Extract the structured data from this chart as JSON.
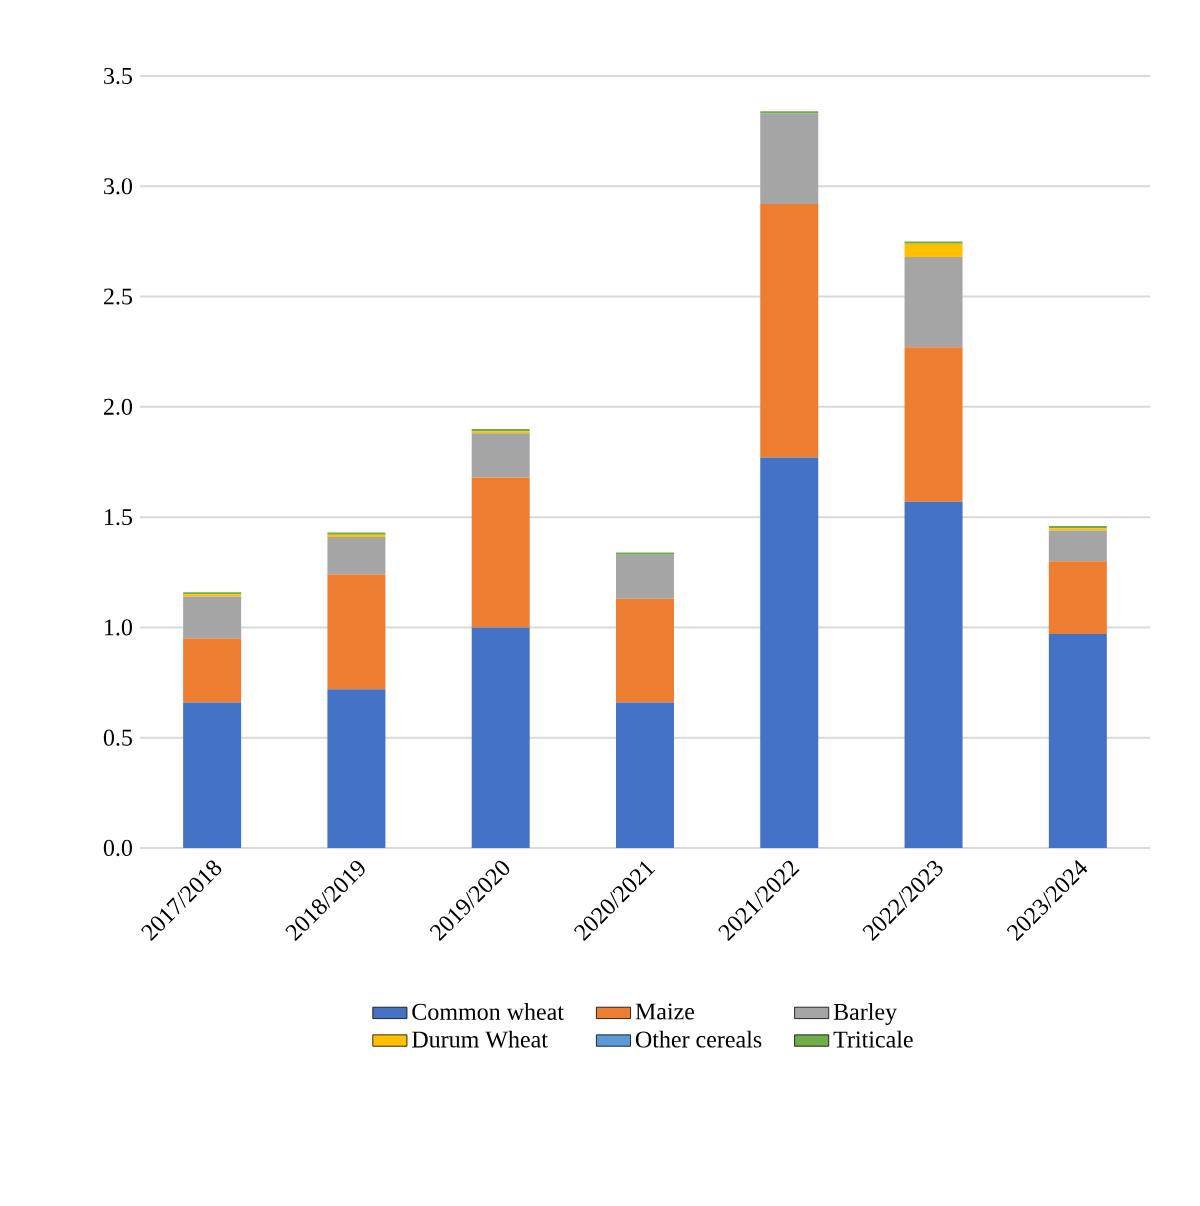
{
  "chart_data": {
    "type": "bar",
    "stacked": true,
    "categories": [
      "2017/2018",
      "2018/2019",
      "2019/2020",
      "2020/2021",
      "2021/2022",
      "2022/2023",
      "2023/2024"
    ],
    "series": [
      {
        "name": "Common wheat",
        "color": "#4472c4",
        "values": [
          0.66,
          0.72,
          1.0,
          0.66,
          1.77,
          1.57,
          0.97
        ]
      },
      {
        "name": "Maize",
        "color": "#ed7d31",
        "values": [
          0.29,
          0.52,
          0.68,
          0.47,
          1.15,
          0.7,
          0.33
        ]
      },
      {
        "name": "Barley",
        "color": "#a5a5a5",
        "values": [
          0.19,
          0.17,
          0.2,
          0.2,
          0.41,
          0.41,
          0.14
        ]
      },
      {
        "name": "Durum Wheat",
        "color": "#ffc000",
        "values": [
          0.01,
          0.01,
          0.01,
          0,
          0,
          0.06,
          0.01
        ]
      },
      {
        "name": "Other cereals",
        "color": "#5b9bd5",
        "values": [
          0,
          0,
          0,
          0,
          0,
          0,
          0
        ]
      },
      {
        "name": "Triticale",
        "color": "#70ad47",
        "values": [
          0.01,
          0.01,
          0.01,
          0.01,
          0.01,
          0.01,
          0.01
        ]
      }
    ],
    "ylim": [
      0,
      3.5
    ],
    "yticks": [
      {
        "value": 0,
        "label": "0.0"
      },
      {
        "value": 0.5,
        "label": "0.5"
      },
      {
        "value": 1,
        "label": "1.0"
      },
      {
        "value": 1.5,
        "label": "1.5"
      },
      {
        "value": 2,
        "label": "2.0"
      },
      {
        "value": 2.5,
        "label": "2.5"
      },
      {
        "value": 3,
        "label": "3.0"
      },
      {
        "value": 3.5,
        "label": "3.5"
      }
    ],
    "grid": "y",
    "legend": "bottom"
  }
}
